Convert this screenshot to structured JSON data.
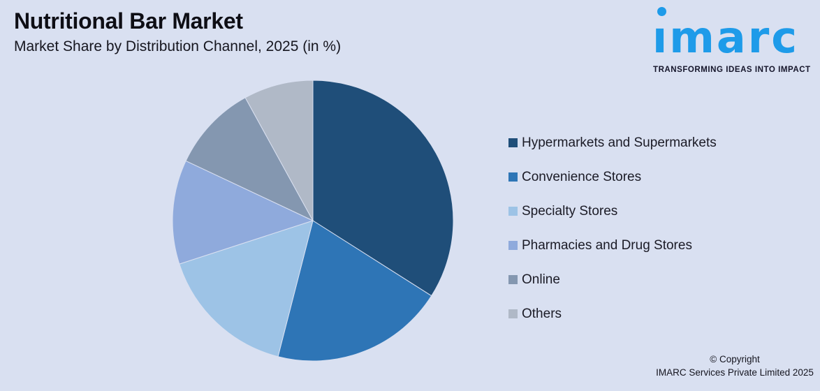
{
  "header": {
    "title": "Nutritional Bar Market",
    "subtitle": "Market Share by Distribution Channel, 2025 (in %)"
  },
  "logo": {
    "wordmark": "imarc",
    "wordmark_display": "ımarc",
    "tagline": "TRANSFORMING IDEAS INTO IMPACT",
    "brand_color": "#1E9BE9"
  },
  "footer": {
    "copyright_line1": "© Copyright",
    "copyright_line2": "IMARC Services Private Limited 2025"
  },
  "theme": {
    "background": "#D9E0F1",
    "text": "#15151F"
  },
  "chart_data": {
    "type": "pie",
    "title": "Nutritional Bar Market",
    "subtitle": "Market Share by Distribution Channel, 2025 (in %)",
    "unit": "%",
    "start_angle_deg": 0,
    "direction": "clockwise",
    "legend_position": "right",
    "value_labels_shown_on_chart": false,
    "values_estimated_from_angles": true,
    "slices": [
      {
        "label": "Hypermarkets and Supermarkets",
        "value": 34,
        "color": "#1F4E79"
      },
      {
        "label": "Convenience Stores",
        "value": 20,
        "color": "#2E75B6"
      },
      {
        "label": "Specialty Stores",
        "value": 16,
        "color": "#9DC3E6"
      },
      {
        "label": "Pharmacies and Drug Stores",
        "value": 12,
        "color": "#8FAADC"
      },
      {
        "label": "Online",
        "value": 10,
        "color": "#8497B0"
      },
      {
        "label": "Others",
        "value": 8,
        "color": "#B0B9C7"
      }
    ]
  }
}
